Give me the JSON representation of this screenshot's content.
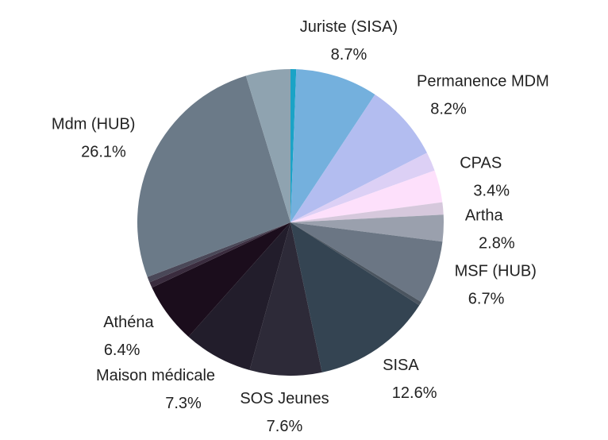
{
  "chart_data": {
    "type": "pie",
    "categories": [
      null,
      "Juriste (SISA)",
      "Permanence MDM",
      null,
      "CPAS",
      null,
      "Artha",
      "MSF (HUB)",
      null,
      "SISA",
      "SOS Jeunes",
      "Maison médicale",
      "Athéna",
      null,
      null,
      "Mdm (HUB)",
      null
    ],
    "values": [
      0.6,
      8.7,
      8.2,
      2.0,
      3.4,
      1.3,
      2.8,
      6.7,
      0.4,
      12.6,
      7.6,
      7.3,
      6.4,
      0.6,
      0.6,
      26.1,
      4.7
    ],
    "value_labels": [
      null,
      "8.7%",
      "8.2%",
      null,
      "3.4%",
      null,
      "2.8%",
      "6.7%",
      null,
      "12.6%",
      "7.6%",
      "7.3%",
      "6.4%",
      null,
      null,
      "26.1%",
      null
    ],
    "colors": [
      "#1ba3c6",
      "#74b0dd",
      "#b3bdf0",
      "#dcd0f5",
      "#fde0fb",
      "#d6c8dc",
      "#9aa0ad",
      "#6b7684",
      "#4b5560",
      "#344452",
      "#2d2a38",
      "#221d2b",
      "#1b0d1c",
      "#3a2c3e",
      "#4a4858",
      "#6b7a88",
      "#8fa3b0"
    ]
  }
}
